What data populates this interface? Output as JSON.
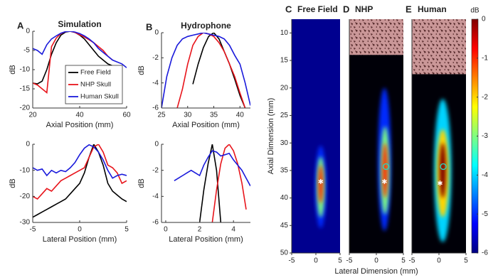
{
  "chart_data": [
    {
      "type": "line",
      "panel": "A",
      "title": "Simulation",
      "xlabel": "Axial Position (mm)",
      "ylabel": "dB",
      "x": [
        20,
        22,
        24,
        26,
        28,
        30,
        32,
        34,
        36,
        38,
        40,
        42,
        44,
        46,
        48,
        50,
        52,
        54,
        56,
        58,
        60
      ],
      "series": [
        {
          "name": "Free Field",
          "color": "#000000",
          "values": [
            -13.5,
            -13.7,
            -13,
            -10,
            -6,
            -3,
            -1,
            -0.2,
            0,
            -0.3,
            -1,
            -2,
            -3.5,
            -5,
            -6.5,
            -7.5,
            -8.5,
            -9,
            null,
            null,
            null
          ]
        },
        {
          "name": "NHP Skull",
          "color": "#e8141b",
          "values": [
            -13.5,
            -14,
            -15,
            -16,
            -4,
            -1.8,
            -0.6,
            -0.1,
            0,
            -0.3,
            -0.9,
            -1.5,
            -2.2,
            -3,
            -4,
            -5,
            -6.5,
            -7.5,
            null,
            null,
            null
          ]
        },
        {
          "name": "Human Skull",
          "color": "#1a1adb",
          "values": [
            -4.5,
            -5,
            -6,
            -3.5,
            -2,
            -1.2,
            -0.5,
            -0.1,
            0,
            -0.2,
            -0.6,
            -1.2,
            -2,
            -3,
            -4.5,
            -5.5,
            -6.5,
            -7.5,
            -8,
            -8.5,
            -9.5
          ]
        }
      ],
      "xlim": [
        20,
        60
      ],
      "xticks": [
        20,
        40,
        60
      ],
      "ylim": [
        -20,
        0
      ],
      "yticks": [
        0,
        -5,
        -10,
        -15,
        -20
      ],
      "legend": "lower right"
    },
    {
      "type": "line",
      "xlabel": "Lateral Position (mm)",
      "ylabel": "dB",
      "x": [
        -5,
        -4.5,
        -4,
        -3.5,
        -3,
        -2.5,
        -2,
        -1.5,
        -1,
        -0.5,
        0,
        0.5,
        1,
        1.5,
        2,
        2.5,
        3,
        3.5,
        4,
        4.5,
        5
      ],
      "series": [
        {
          "name": "Free Field",
          "color": "#000000",
          "values": [
            -28,
            -27,
            -26,
            -25,
            -24,
            -23,
            -22,
            -21,
            -19,
            -17,
            -15,
            -11,
            -5,
            0,
            -3,
            -8,
            -15,
            -18,
            -19.5,
            -21,
            -22
          ]
        },
        {
          "name": "NHP Skull",
          "color": "#e8141b",
          "values": [
            -20,
            -21,
            -19,
            -17,
            -18,
            -16,
            -14,
            -13,
            -12,
            -11,
            -10,
            -9,
            -5,
            -1,
            0,
            -3,
            -8,
            -9,
            -11,
            -15,
            -14
          ]
        },
        {
          "name": "Human Skull",
          "color": "#1a1adb",
          "values": [
            -9,
            -10,
            -9.5,
            -12,
            -10,
            -11,
            -10,
            -10.5,
            -9,
            -7,
            -4,
            -1.5,
            -0.2,
            -1,
            -3,
            -6,
            -10,
            -13,
            -12,
            -11.5,
            -12
          ]
        }
      ],
      "xlim": [
        -5,
        5
      ],
      "xticks": [
        -5,
        0,
        5
      ],
      "ylim": [
        -30,
        0
      ],
      "yticks": [
        0,
        -10,
        -20,
        -30
      ]
    },
    {
      "type": "line",
      "panel": "B",
      "title": "Hydrophone",
      "xlabel": "Axial Position (mm)",
      "ylabel": "dB",
      "x": [
        25,
        26,
        27,
        28,
        29,
        30,
        31,
        32,
        33,
        34,
        35,
        36,
        37,
        38,
        39,
        40,
        41,
        42
      ],
      "series": [
        {
          "name": "Free Field",
          "color": "#000000",
          "values": [
            null,
            null,
            null,
            null,
            null,
            null,
            -4.1,
            -2.5,
            -1.2,
            -0.3,
            0,
            -0.5,
            -1.5,
            -2.5,
            -3.7,
            -5,
            -6,
            null
          ]
        },
        {
          "name": "NHP Skull",
          "color": "#e8141b",
          "values": [
            null,
            null,
            null,
            -6,
            -4.5,
            -2.5,
            -1,
            -0.3,
            0,
            -0.1,
            -0.3,
            -0.8,
            -1.5,
            -2.5,
            -3.5,
            -4.8,
            -6,
            null
          ]
        },
        {
          "name": "Human Skull",
          "color": "#1a1adb",
          "values": [
            -6,
            -3.5,
            -2,
            -1,
            -0.5,
            -0.3,
            -0.2,
            -0.1,
            0,
            -0.1,
            -0.2,
            -0.3,
            -0.5,
            -1,
            -1.8,
            -2.5,
            -4,
            -5.8
          ]
        }
      ],
      "xlim": [
        25,
        42
      ],
      "xticks": [
        25,
        30,
        35,
        40
      ],
      "ylim": [
        -6,
        0
      ],
      "yticks": [
        0,
        -2,
        -4,
        -6
      ]
    },
    {
      "type": "line",
      "xlabel": "Lateral Position (mm)",
      "ylabel": "dB",
      "x": [
        0,
        0.25,
        0.5,
        0.75,
        1,
        1.25,
        1.5,
        1.75,
        2,
        2.25,
        2.5,
        2.75,
        3,
        3.25,
        3.5,
        3.75,
        4,
        4.25,
        4.5,
        4.75,
        5
      ],
      "series": [
        {
          "name": "Free Field",
          "color": "#000000",
          "values": [
            null,
            null,
            null,
            null,
            null,
            null,
            null,
            null,
            -6,
            -3.5,
            -1.5,
            0,
            -2,
            -6,
            null,
            null,
            null,
            null,
            null,
            null,
            null
          ]
        },
        {
          "name": "NHP Skull",
          "color": "#e8141b",
          "values": [
            null,
            null,
            null,
            null,
            null,
            null,
            null,
            null,
            null,
            null,
            null,
            -6,
            -3.5,
            -1.5,
            -0.3,
            0,
            -0.5,
            -1.5,
            -3,
            -5,
            null
          ]
        },
        {
          "name": "Human Skull",
          "color": "#1a1adb",
          "values": [
            null,
            null,
            -2.8,
            -2.6,
            -2.4,
            -2.2,
            -2,
            -2.2,
            -2.4,
            -1.6,
            -1,
            -0.5,
            -0.6,
            -0.9,
            -0.8,
            -0.7,
            -1.2,
            -1.6,
            -2,
            -2.6,
            -3.2
          ]
        }
      ],
      "xlim": [
        -0.25,
        5
      ],
      "xticks": [
        0,
        2,
        4
      ],
      "ylim": [
        -6,
        0
      ],
      "yticks": [
        0,
        -2,
        -4,
        -6
      ]
    },
    {
      "type": "heatmap",
      "panel": "C",
      "title": "Free Field",
      "ylabel": "Axial Dimension (mm)",
      "background": "#00008f",
      "xlim": [
        -5,
        5
      ],
      "xticks": [
        -5,
        0,
        5
      ],
      "ylim": [
        7.5,
        50
      ],
      "yticks": [
        10,
        15,
        20,
        25,
        30,
        35,
        40,
        45,
        50
      ],
      "y_reversed": true,
      "clim": [
        -6,
        0
      ],
      "spots": [
        {
          "x": 1,
          "y": 38,
          "rx": 1.1,
          "ry": 7.5,
          "value": -5
        },
        {
          "x": 1,
          "y": 38,
          "rx": 0.8,
          "ry": 5.5,
          "value": -3
        },
        {
          "x": 1,
          "y": 37.5,
          "rx": 0.5,
          "ry": 3.5,
          "value": -1
        }
      ],
      "star": {
        "x": 1,
        "y": 37
      }
    },
    {
      "type": "heatmap",
      "panel": "D",
      "title": "NHP",
      "xlabel": "Lateral Dimension (mm)",
      "background": "#000008",
      "xlim": [
        -5,
        5
      ],
      "xticks": [
        -5,
        0,
        5
      ],
      "ylim": [
        7.5,
        50
      ],
      "y_reversed": true,
      "clim": [
        -6,
        0
      ],
      "skull": [
        7.5,
        14
      ],
      "spots": [
        {
          "x": 1.5,
          "y": 33,
          "rx": 1.2,
          "ry": 13,
          "value": -5
        },
        {
          "x": 1.6,
          "y": 35,
          "rx": 0.8,
          "ry": 8,
          "value": -3
        },
        {
          "x": 1.6,
          "y": 35,
          "rx": 0.5,
          "ry": 5,
          "value": -1
        }
      ],
      "star": {
        "x": 1.5,
        "y": 37
      },
      "circle": {
        "x": 1.8,
        "y": 34.3
      }
    },
    {
      "type": "heatmap",
      "panel": "E",
      "title": "Human",
      "background": "#000008",
      "xlim": [
        -5,
        5
      ],
      "xticks": [
        -5,
        0,
        5
      ],
      "ylim": [
        7.5,
        50
      ],
      "y_reversed": true,
      "clim": [
        -6,
        0
      ],
      "skull": [
        7.5,
        17.5
      ],
      "spots": [
        {
          "x": 0.7,
          "y": 35,
          "rx": 1.6,
          "ry": 13,
          "value": -4
        },
        {
          "x": 0.7,
          "y": 35.5,
          "rx": 1.1,
          "ry": 8,
          "value": -2
        },
        {
          "x": 0.7,
          "y": 35,
          "rx": 0.6,
          "ry": 5,
          "value": 0
        }
      ],
      "star": {
        "x": 0.2,
        "y": 37.3
      },
      "circle": {
        "x": 0.8,
        "y": 34.3
      }
    },
    {
      "type": "colorbar",
      "title": "dB",
      "ylim": [
        -6,
        0
      ],
      "yticks": [
        0,
        -1,
        -2,
        -3,
        -4,
        -5,
        -6
      ]
    }
  ]
}
